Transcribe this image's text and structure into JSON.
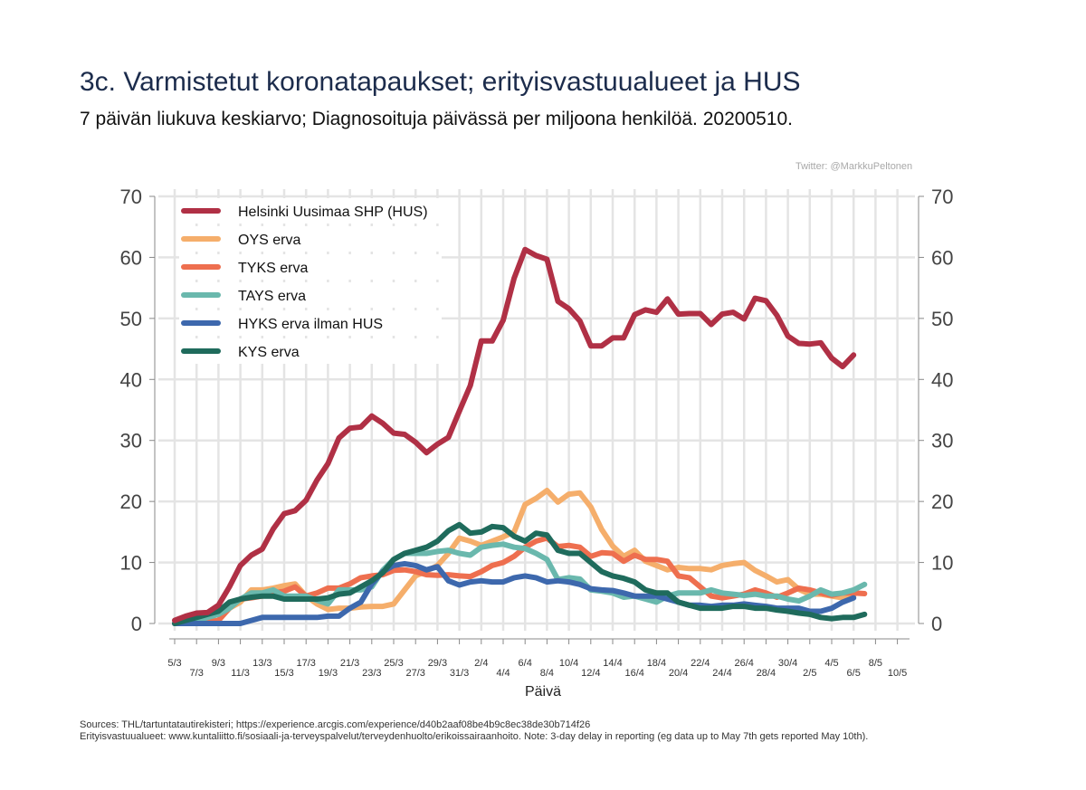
{
  "title": "3c. Varmistetut koronatapaukset; erityisvastuualueet ja HUS",
  "subtitle": "7 päivän liukuva keskiarvo; Diagnosoituja päivässä per miljoona henkilöä. 20200510.",
  "credit": "Twitter: @MarkkuPeltonen",
  "notes": [
    "Sources: THL/tartuntatautirekisteri; https://experience.arcgis.com/experience/d40b2aaf08be4b9c8ec38de30b714f26",
    "Erityisvastuualueet: www.kuntaliitto.fi/sosiaali-ja-terveyspalvelut/terveydenhuolto/erikoissairaanhoito. Note: 3-day delay in reporting (eg data up to May 7th gets reported May 10th)."
  ],
  "chart_data": {
    "type": "line",
    "title": "3c. Varmistetut koronatapaukset; erityisvastuualueet ja HUS",
    "xlabel": "Päivä",
    "ylabel": "",
    "ylim": [
      0,
      70
    ],
    "yticks": [
      0,
      10,
      20,
      30,
      40,
      50,
      60,
      70
    ],
    "xtick_labels_upper": [
      "5/3",
      "9/3",
      "13/3",
      "17/3",
      "21/3",
      "25/3",
      "29/3",
      "2/4",
      "6/4",
      "10/4",
      "14/4",
      "18/4",
      "22/4",
      "26/4",
      "30/4",
      "4/5",
      "8/5"
    ],
    "xtick_labels_lower": [
      "7/3",
      "11/3",
      "15/3",
      "19/3",
      "23/3",
      "27/3",
      "31/3",
      "4/4",
      "8/4",
      "12/4",
      "16/4",
      "20/4",
      "24/4",
      "28/4",
      "2/5",
      "6/5",
      "10/5"
    ],
    "grid": true,
    "legend_position": "top-left",
    "x": [
      "5/3",
      "6/3",
      "7/3",
      "8/3",
      "9/3",
      "10/3",
      "11/3",
      "12/3",
      "13/3",
      "14/3",
      "15/3",
      "16/3",
      "17/3",
      "18/3",
      "19/3",
      "20/3",
      "21/3",
      "22/3",
      "23/3",
      "24/3",
      "25/3",
      "26/3",
      "27/3",
      "28/3",
      "29/3",
      "30/3",
      "31/3",
      "1/4",
      "2/4",
      "3/4",
      "4/4",
      "5/4",
      "6/4",
      "7/4",
      "8/4",
      "9/4",
      "10/4",
      "11/4",
      "12/4",
      "13/4",
      "14/4",
      "15/4",
      "16/4",
      "17/4",
      "18/4",
      "19/4",
      "20/4",
      "21/4",
      "22/4",
      "23/4",
      "24/4",
      "25/4",
      "26/4",
      "27/4",
      "28/4",
      "29/4",
      "30/4",
      "1/5",
      "2/5",
      "3/5",
      "4/5",
      "5/5",
      "6/5",
      "7/5"
    ],
    "series": [
      {
        "name": "Helsinki Uusimaa SHP (HUS)",
        "color": "#b03045",
        "values": [
          0.5,
          1.2,
          1.7,
          1.8,
          3.0,
          6.0,
          9.5,
          11.2,
          12.2,
          15.5,
          18.0,
          18.5,
          20.2,
          23.5,
          26.2,
          30.4,
          32.0,
          32.2,
          34.0,
          32.8,
          31.2,
          31.0,
          29.7,
          28.0,
          29.4,
          30.5,
          34.8,
          39.0,
          46.3,
          46.3,
          49.7,
          56.6,
          61.3,
          60.3,
          59.7,
          52.8,
          51.6,
          49.6,
          45.5,
          45.5,
          46.8,
          46.8,
          50.6,
          51.4,
          51.0,
          53.2,
          50.7,
          50.8,
          50.8,
          49.0,
          50.7,
          51.0,
          49.9,
          53.3,
          52.9,
          50.5,
          47.1,
          45.9,
          45.8,
          46.0,
          43.5,
          42.1,
          44.0,
          null
        ]
      },
      {
        "name": "OYS erva",
        "color": "#f5ae6b",
        "values": [
          0,
          0,
          0.3,
          0.4,
          0.5,
          2.5,
          3.5,
          5.5,
          5.5,
          5.8,
          6.2,
          6.5,
          4.5,
          3.2,
          2.3,
          2.5,
          2.5,
          2.7,
          2.8,
          2.8,
          3.2,
          5.5,
          7.8,
          8.6,
          9.5,
          11.5,
          14.0,
          13.5,
          12.8,
          13.5,
          14.2,
          15.0,
          19.5,
          20.5,
          21.8,
          19.9,
          21.2,
          21.4,
          19.1,
          15.4,
          12.7,
          11.0,
          12.0,
          10.2,
          9.5,
          8.8,
          9.2,
          9.0,
          9.0,
          8.8,
          9.5,
          9.8,
          10.0,
          8.7,
          7.8,
          6.8,
          7.2,
          5.6,
          4.8,
          4.8,
          4.5,
          4.2,
          4.5,
          null
        ]
      },
      {
        "name": "TYKS erva",
        "color": "#ee6f4f",
        "values": [
          0,
          0,
          0,
          0.2,
          0.5,
          2.5,
          4.0,
          4.2,
          4.5,
          5.0,
          5.3,
          6.0,
          4.5,
          5.0,
          5.8,
          5.8,
          6.5,
          7.5,
          7.8,
          8.0,
          8.7,
          8.8,
          8.5,
          8.0,
          7.9,
          8.0,
          7.8,
          7.7,
          8.5,
          9.5,
          10.0,
          11.0,
          12.5,
          13.5,
          14.0,
          12.6,
          12.8,
          12.5,
          11.0,
          11.6,
          11.5,
          10.2,
          11.2,
          10.5,
          10.5,
          10.2,
          7.8,
          7.5,
          6.0,
          4.5,
          4.2,
          4.5,
          4.8,
          5.5,
          5.0,
          4.3,
          5.0,
          5.8,
          5.5,
          5.0,
          4.6,
          5.0,
          5.0,
          4.9
        ]
      },
      {
        "name": "TAYS erva",
        "color": "#6ab8ad",
        "values": [
          0,
          0.3,
          0.5,
          1.0,
          1.5,
          2.5,
          4.0,
          5.0,
          5.0,
          5.5,
          4.5,
          4.5,
          4.5,
          3.8,
          3.2,
          5.5,
          5.5,
          5.5,
          6.0,
          8.7,
          10.5,
          11.5,
          11.5,
          11.5,
          11.8,
          12.0,
          11.5,
          11.2,
          12.5,
          12.8,
          13.0,
          12.5,
          12.3,
          11.5,
          10.5,
          7.2,
          7.5,
          7.3,
          5.5,
          5.3,
          5.0,
          4.3,
          4.5,
          4.0,
          3.5,
          4.5,
          5.0,
          5.0,
          5.0,
          5.5,
          5.0,
          4.8,
          4.6,
          4.8,
          4.5,
          4.5,
          4.0,
          3.7,
          4.5,
          5.5,
          4.8,
          5.0,
          5.5,
          6.4
        ]
      },
      {
        "name": "HYKS erva ilman HUS",
        "color": "#3d68ad",
        "values": [
          0,
          0,
          0,
          0,
          0,
          0,
          0,
          0.5,
          1.0,
          1.0,
          1.0,
          1.0,
          1.0,
          1.0,
          1.2,
          1.2,
          2.5,
          3.5,
          6.5,
          8.5,
          9.5,
          9.8,
          9.5,
          8.8,
          9.3,
          7.0,
          6.3,
          6.8,
          7.0,
          6.8,
          6.8,
          7.5,
          7.8,
          7.5,
          6.8,
          7.0,
          6.8,
          6.4,
          5.7,
          5.5,
          5.4,
          5.0,
          4.5,
          4.5,
          4.5,
          4.0,
          3.5,
          3.0,
          3.0,
          2.8,
          3.0,
          3.0,
          3.2,
          3.0,
          2.8,
          2.5,
          2.5,
          2.5,
          2.0,
          2.0,
          2.5,
          3.5,
          4.2,
          null
        ]
      },
      {
        "name": "KYS erva",
        "color": "#1f6b5c",
        "values": [
          0,
          0.5,
          1.0,
          1.5,
          2.0,
          3.5,
          4.0,
          4.3,
          4.5,
          4.5,
          4.0,
          4.0,
          4.0,
          4.0,
          4.2,
          4.8,
          5.0,
          6.0,
          7.0,
          8.3,
          10.5,
          11.5,
          12.0,
          12.5,
          13.5,
          15.2,
          16.2,
          14.8,
          15.0,
          15.9,
          15.7,
          14.3,
          13.5,
          14.8,
          14.5,
          12.0,
          11.5,
          11.5,
          10.0,
          8.5,
          7.8,
          7.4,
          6.8,
          5.5,
          5.0,
          5.0,
          3.5,
          3.0,
          2.5,
          2.5,
          2.5,
          2.8,
          2.8,
          2.5,
          2.5,
          2.2,
          2.0,
          1.7,
          1.5,
          1.0,
          0.8,
          1.0,
          1.0,
          1.5
        ]
      }
    ]
  }
}
